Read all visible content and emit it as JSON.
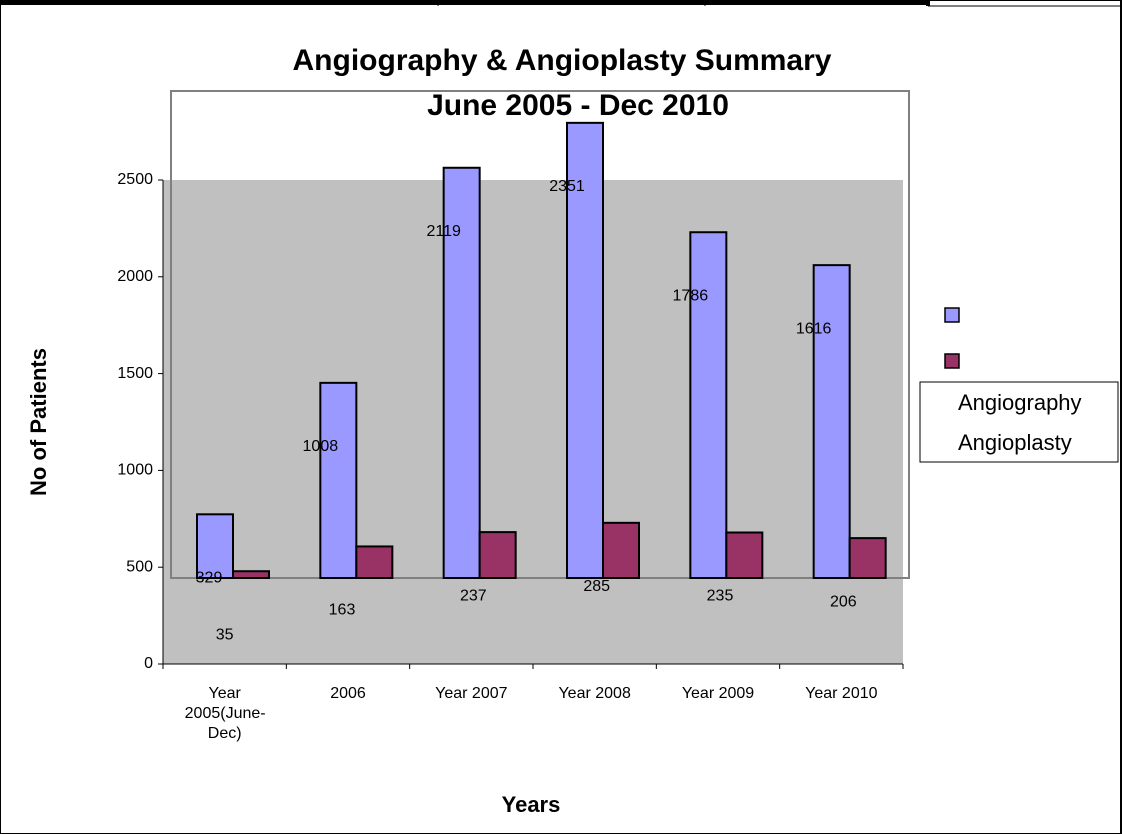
{
  "chart_data": {
    "type": "bar",
    "title": "Angiography & Angioplasty Summary",
    "subtitle": "June 2005 - Dec 2010",
    "x_label": "Years",
    "y_label": "No of Patients",
    "categories": [
      "Year 2005(June-Dec)",
      "2006",
      "Year 2007",
      "Year 2008",
      "Year 2009",
      "Year 2010"
    ],
    "series": [
      {
        "name": "Angiography",
        "color": "#9999ff",
        "values": [
          329,
          1008,
          2119,
          2351,
          1786,
          1616
        ]
      },
      {
        "name": "Angioplasty",
        "color": "#993366",
        "values": [
          35,
          163,
          237,
          285,
          235,
          206
        ]
      }
    ],
    "ylim": [
      0,
      2500
    ],
    "yticks": [
      0,
      500,
      1000,
      1500,
      2000,
      2500
    ]
  }
}
